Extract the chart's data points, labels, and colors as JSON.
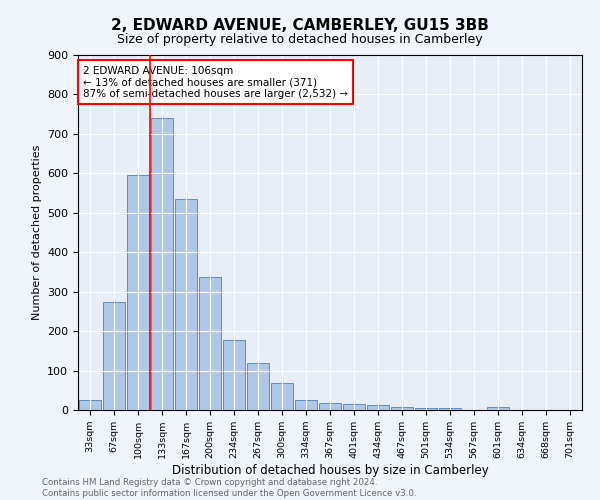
{
  "title": "2, EDWARD AVENUE, CAMBERLEY, GU15 3BB",
  "subtitle": "Size of property relative to detached houses in Camberley",
  "xlabel": "Distribution of detached houses by size in Camberley",
  "ylabel": "Number of detached properties",
  "bar_labels": [
    "33sqm",
    "67sqm",
    "100sqm",
    "133sqm",
    "167sqm",
    "200sqm",
    "234sqm",
    "267sqm",
    "300sqm",
    "334sqm",
    "367sqm",
    "401sqm",
    "434sqm",
    "467sqm",
    "501sqm",
    "534sqm",
    "567sqm",
    "601sqm",
    "634sqm",
    "668sqm",
    "701sqm"
  ],
  "bar_values": [
    25,
    275,
    595,
    740,
    535,
    338,
    178,
    118,
    68,
    25,
    18,
    15,
    12,
    8,
    6,
    5,
    0,
    8,
    0,
    0,
    0
  ],
  "bar_color": "#aec6e8",
  "bar_edge_color": "#5a8fc2",
  "vline_x": 2.5,
  "annotation_text": "2 EDWARD AVENUE: 106sqm\n← 13% of detached houses are smaller (371)\n87% of semi-detached houses are larger (2,532) →",
  "annotation_box_color": "white",
  "annotation_box_edgecolor": "red",
  "vline_color": "red",
  "ylim": [
    0,
    900
  ],
  "yticks": [
    0,
    100,
    200,
    300,
    400,
    500,
    600,
    700,
    800,
    900
  ],
  "footer_text": "Contains HM Land Registry data © Crown copyright and database right 2024.\nContains public sector information licensed under the Open Government Licence v3.0.",
  "background_color": "#f0f4fb",
  "plot_bg_color": "#e8eef8"
}
